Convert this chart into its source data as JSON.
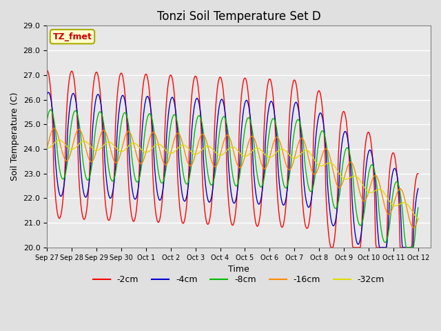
{
  "title": "Tonzi Soil Temperature Set D",
  "xlabel": "Time",
  "ylabel": "Soil Temperature (C)",
  "ylim": [
    20.0,
    29.0
  ],
  "yticks": [
    20.0,
    21.0,
    22.0,
    23.0,
    24.0,
    25.0,
    26.0,
    27.0,
    28.0,
    29.0
  ],
  "xtick_labels": [
    "Sep 27",
    "Sep 28",
    "Sep 29",
    "Sep 30",
    "Oct 1",
    "Oct 2",
    "Oct 3",
    "Oct 4",
    "Oct 5",
    "Oct 6",
    "Oct 7",
    "Oct 8",
    "Oct 9",
    "Oct 10",
    "Oct 11",
    "Oct 12"
  ],
  "legend_labels": [
    "-2cm",
    "-4cm",
    "-8cm",
    "-16cm",
    "-32cm"
  ],
  "legend_colors": [
    "#ff0000",
    "#0000cc",
    "#00bb00",
    "#ff8800",
    "#dddd00"
  ],
  "annotation_text": "TZ_fmet",
  "annotation_color": "#cc0000",
  "annotation_bg": "#ffffcc",
  "annotation_border": "#aaaa00",
  "bg_color": "#e0e0e0",
  "plot_bg_color": "#e8e8e8",
  "title_fontsize": 12,
  "axis_label_fontsize": 9
}
